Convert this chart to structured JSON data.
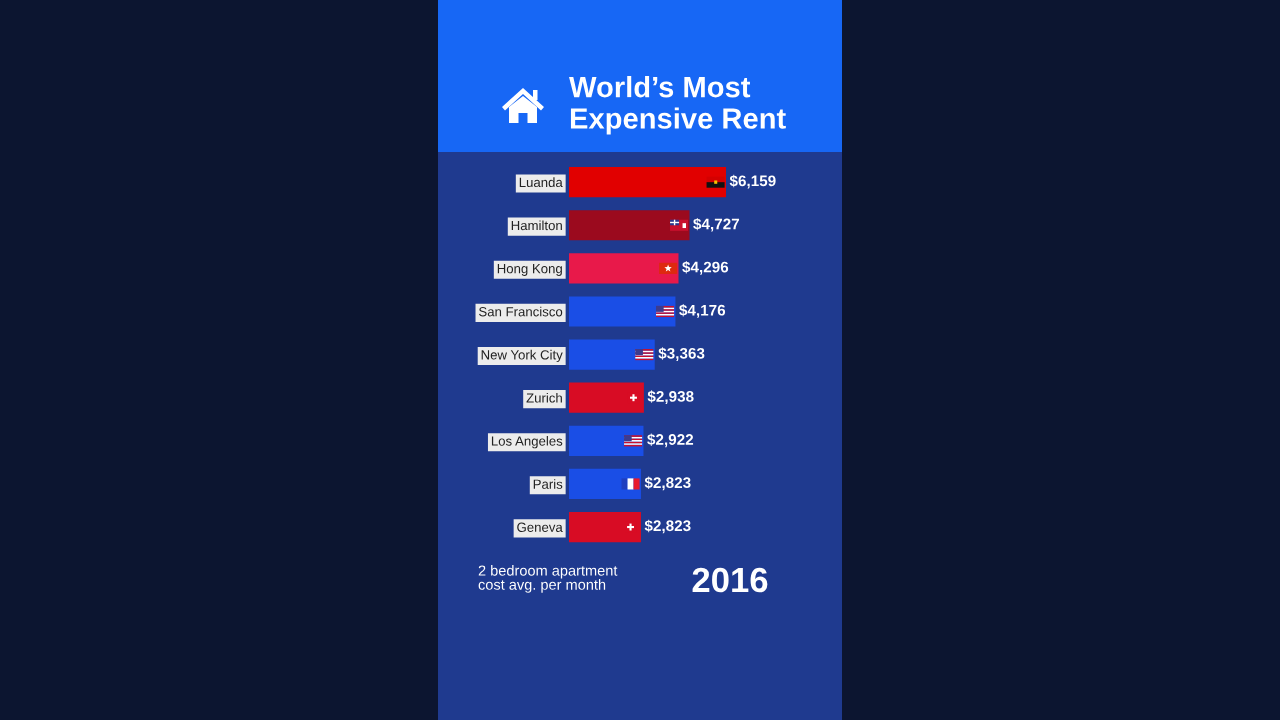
{
  "chart_data": {
    "type": "bar",
    "orientation": "horizontal",
    "title": "World’s Most Expensive Rent",
    "categories": [
      "Luanda",
      "Hamilton",
      "Hong Kong",
      "San Francisco",
      "New York City",
      "Zurich",
      "Los Angeles",
      "Paris",
      "Geneva"
    ],
    "values": [
      6159,
      4727,
      4296,
      4176,
      3363,
      2938,
      2922,
      2823,
      2823
    ],
    "colors": [
      "#e10000",
      "#9b0a1e",
      "#e8194a",
      "#1a4ee6",
      "#1a4ee6",
      "#d80c24",
      "#1a4ee6",
      "#1a4ee6",
      "#d80c24"
    ],
    "value_labels": [
      "$6,159",
      "$4,727",
      "$4,296",
      "$4,176",
      "$3,363",
      "$2,938",
      "$2,922",
      "$2,823",
      "$2,823"
    ],
    "tick_labels": "y",
    "annotations": [
      "2 bedroom apartment cost avg. per month",
      "2016"
    ]
  }
}
